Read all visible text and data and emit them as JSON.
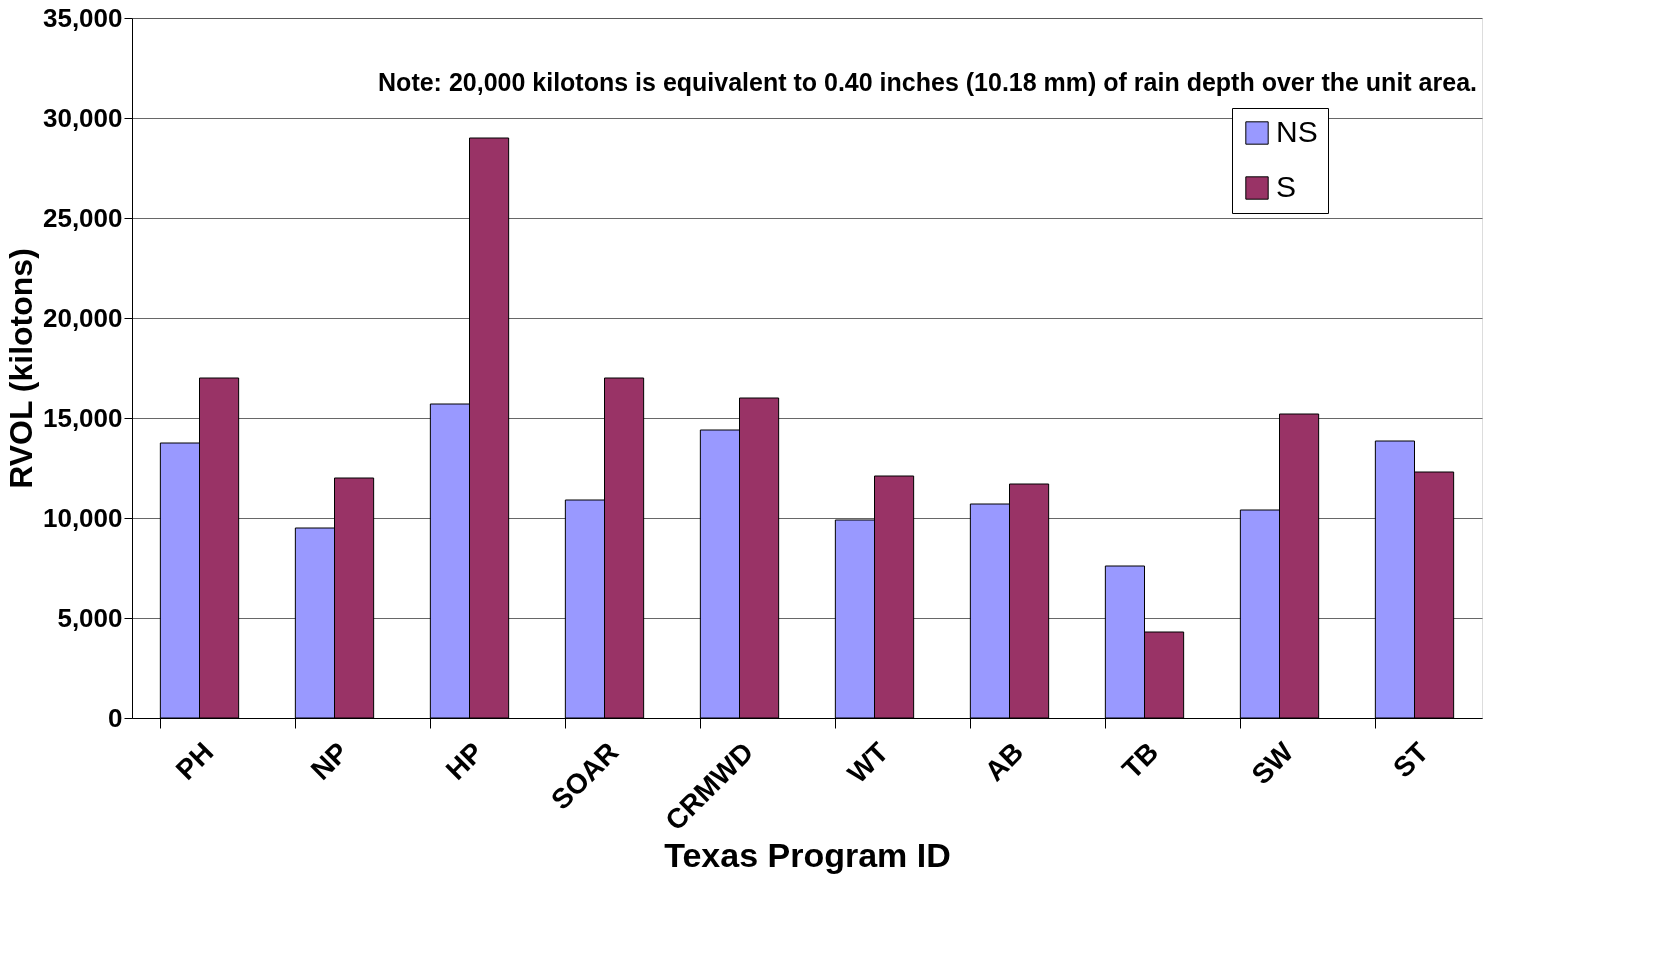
{
  "chart_data": {
    "type": "bar",
    "xlabel": "Texas Program ID",
    "ylabel": "RVOL (kilotons)",
    "categories": [
      "PH",
      "NP",
      "HP",
      "SOAR",
      "CRMWD",
      "WT",
      "AB",
      "TB",
      "SW",
      "ST"
    ],
    "series": [
      {
        "name": "NS",
        "color": "#9999ff",
        "values": [
          13750,
          9500,
          15700,
          10900,
          14400,
          9900,
          10700,
          7600,
          10400,
          13850
        ]
      },
      {
        "name": "S",
        "color": "#993366",
        "values": [
          17000,
          12000,
          29000,
          17000,
          16000,
          12100,
          11700,
          4300,
          15200,
          12300
        ]
      }
    ],
    "ylim": [
      0,
      35000
    ],
    "yticks": [
      0,
      {
        "value": 5000,
        "label": "5,000"
      },
      {
        "value": 10000,
        "label": "10,000"
      },
      {
        "value": 15000,
        "label": "15,000"
      },
      {
        "value": 20000,
        "label": "20,000"
      },
      {
        "value": 25000,
        "label": "25,000"
      },
      {
        "value": 30000,
        "label": "30,000"
      },
      {
        "value": 35000,
        "label": "35,000"
      }
    ],
    "grid": "y",
    "legend": "top right",
    "annotations": [
      "Note: 20,000 kilotons is equivalent to 0.40 inches (10.18 mm) of rain depth over the unit area."
    ]
  }
}
